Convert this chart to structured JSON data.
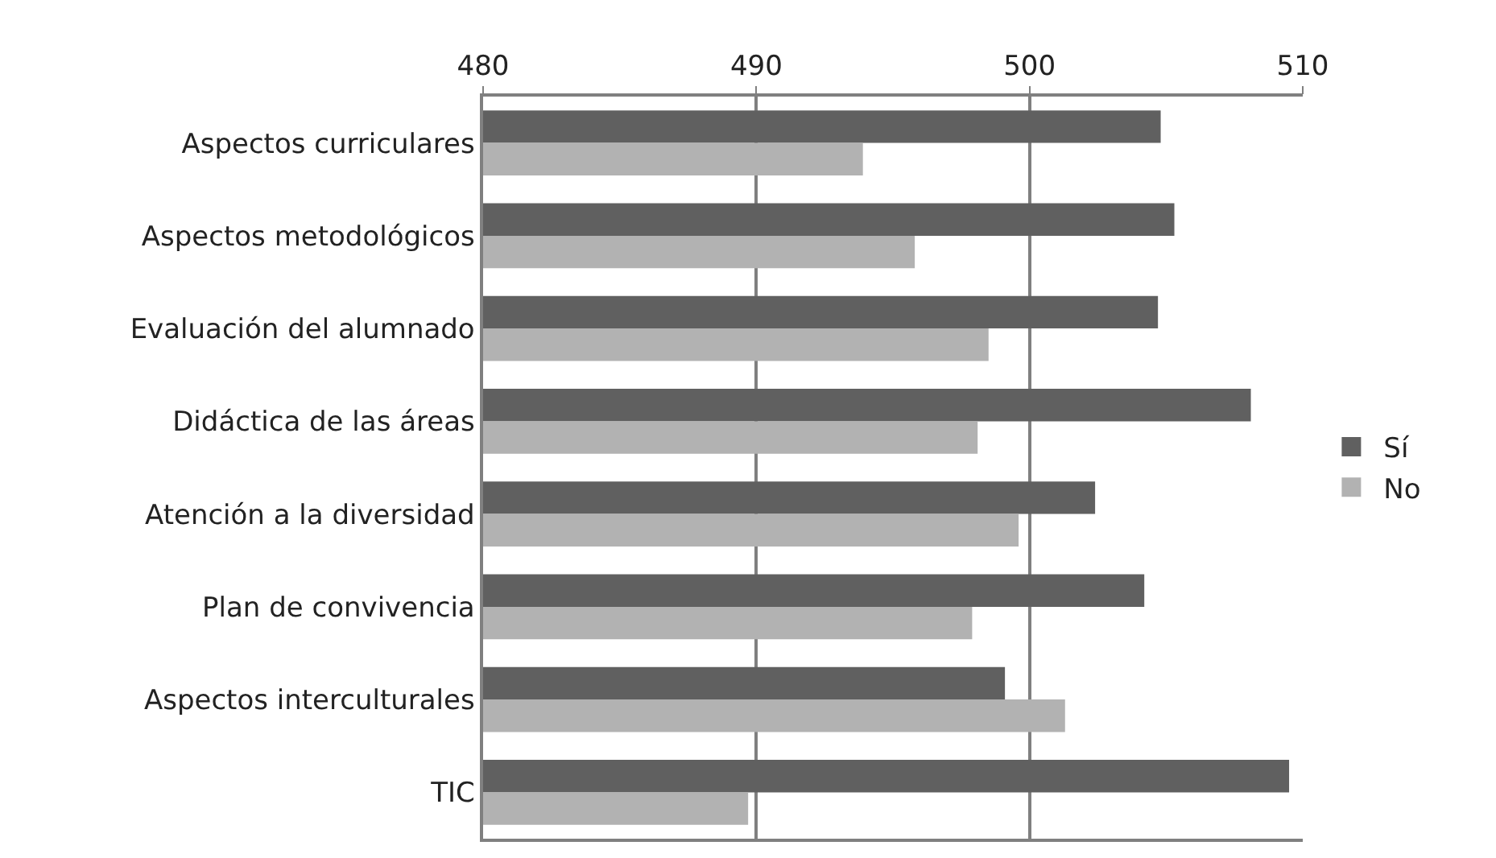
{
  "chart_data": {
    "type": "bar",
    "orientation": "horizontal",
    "categories": [
      "Aspectos curriculares",
      "Aspectos metodológicos",
      "Evaluación del alumnado",
      "Didáctica de las áreas",
      "Atención a la diversidad",
      "Plan de convivencia",
      "Aspectos interculturales",
      "TIC"
    ],
    "series": [
      {
        "name": "Sí",
        "color": "#606060",
        "values": [
          504.8,
          505.3,
          504.7,
          508.1,
          502.4,
          504.2,
          499.1,
          509.5
        ]
      },
      {
        "name": "No",
        "color": "#b2b2b2",
        "values": [
          493.9,
          495.8,
          498.5,
          498.1,
          499.6,
          497.9,
          501.3,
          489.7
        ]
      }
    ],
    "xlim": [
      480,
      510
    ],
    "xticks": [
      480,
      490,
      500,
      510
    ],
    "grid": "x",
    "legend": "right"
  }
}
